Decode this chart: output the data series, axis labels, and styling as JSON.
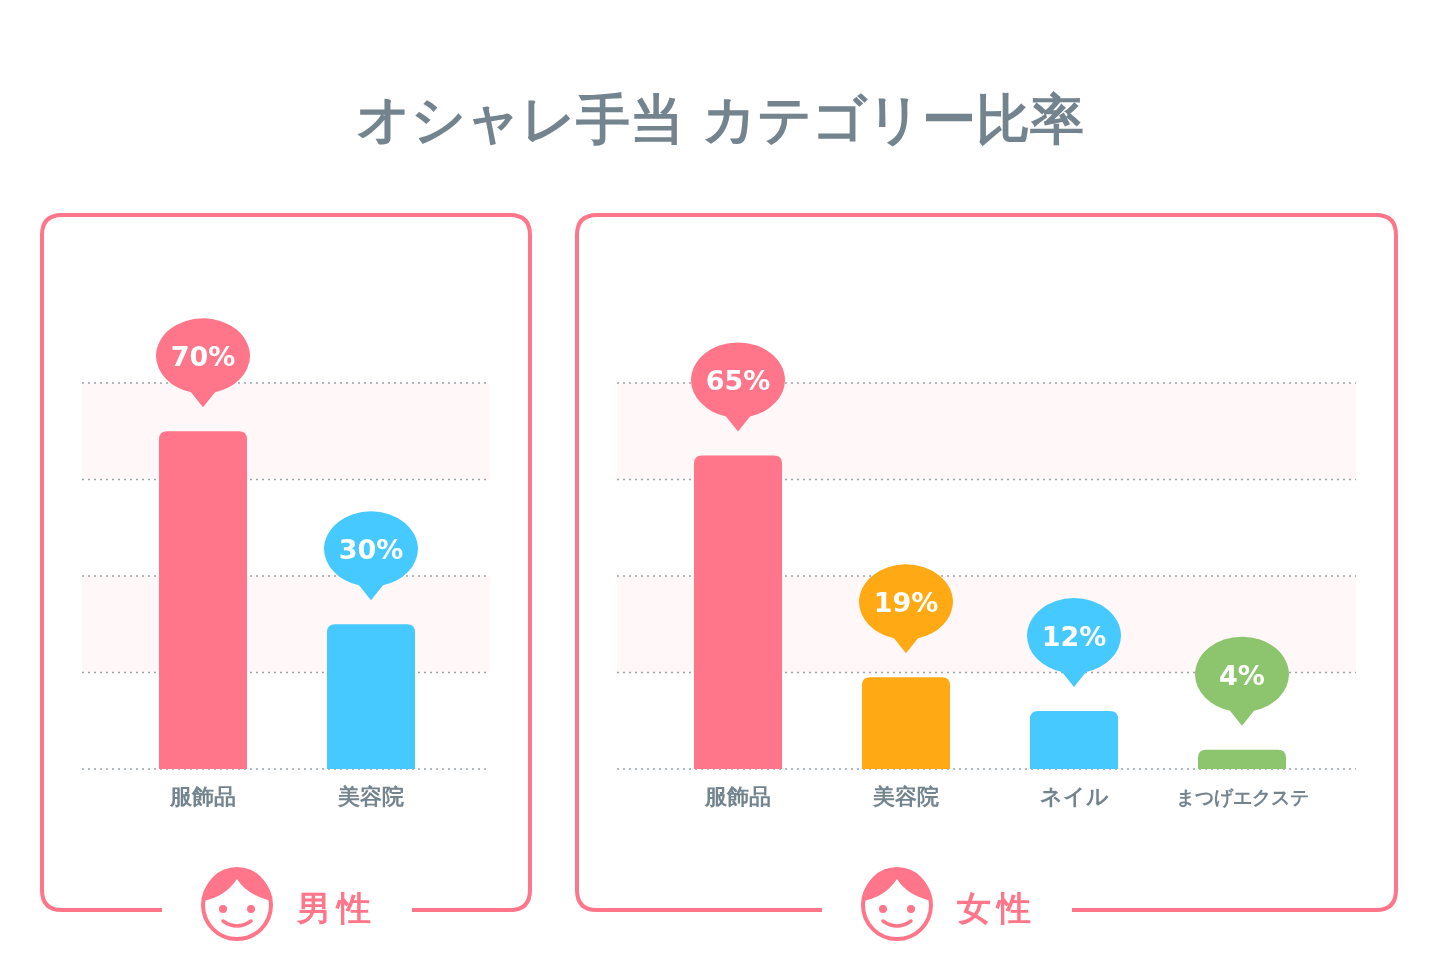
{
  "chart_data": [
    {
      "type": "bar",
      "title": "オシャレ手当 カテゴリー比率",
      "xlabel": "男性",
      "categories": [
        "服飾品",
        "美容院"
      ],
      "values": [
        70,
        30
      ],
      "colors": [
        "#ff7589",
        "#45c9ff"
      ],
      "value_labels": [
        "70%",
        "30%"
      ],
      "ylim": [
        0,
        80
      ],
      "yticks": [
        {
          "value": 0,
          "label": null
        },
        {
          "value": 20,
          "label": null
        },
        {
          "value": 40,
          "label": null
        },
        {
          "value": 60,
          "label": null
        },
        {
          "value": 80,
          "label": null
        }
      ],
      "grid": "y",
      "bands": [
        {
          "axis": "y",
          "from": 20,
          "to": 40,
          "color": "#fff7f8"
        },
        {
          "axis": "y",
          "from": 60,
          "to": 80,
          "color": "#fff7f8"
        }
      ]
    },
    {
      "type": "bar",
      "xlabel": "女性",
      "categories": [
        "服飾品",
        "美容院",
        "ネイル",
        "まつげエクステ"
      ],
      "values": [
        65,
        19,
        12,
        4
      ],
      "colors": [
        "#ff7589",
        "#ffa914",
        "#45c9ff",
        "#8cc56e"
      ],
      "value_labels": [
        "65%",
        "19%",
        "12%",
        "4%"
      ],
      "ylim": [
        0,
        80
      ],
      "yticks": [
        {
          "value": 0,
          "label": null
        },
        {
          "value": 20,
          "label": null
        },
        {
          "value": 40,
          "label": null
        },
        {
          "value": 60,
          "label": null
        },
        {
          "value": 80,
          "label": null
        }
      ],
      "grid": "y",
      "bands": [
        {
          "axis": "y",
          "from": 20,
          "to": 40,
          "color": "#fff7f8"
        },
        {
          "axis": "y",
          "from": 60,
          "to": 80,
          "color": "#fff7f8"
        }
      ]
    }
  ]
}
